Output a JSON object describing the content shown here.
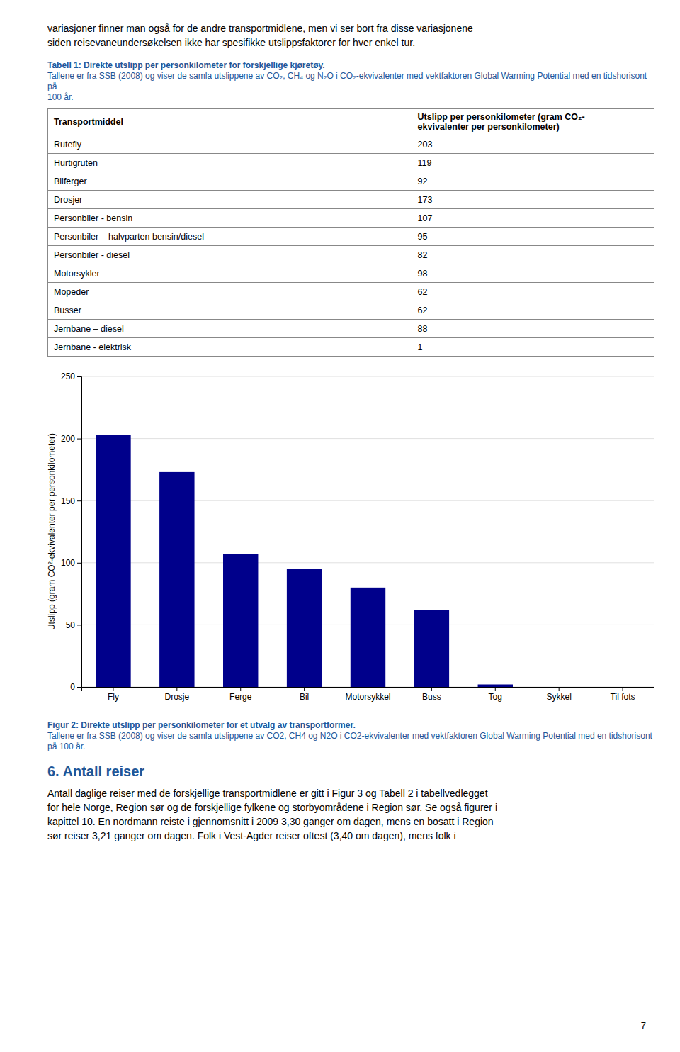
{
  "document": {
    "intro": [
      "variasjoner finner man også for de andre transportmidlene, men vi ser bort fra disse variasjonene",
      "siden reisevaneundersøkelsen ikke har spesifikke utslippsfaktorer for hver enkel tur."
    ],
    "table_caption_title": "Tabell 1: Direkte utslipp per personkilometer for forskjellige kjøretøy.",
    "table_caption_body": [
      "Tallene er fra SSB (2008) og viser de samla utslippene av CO₂, CH₄ og N₂O i CO₂-ekvivalenter med vektfaktoren Global Warming Potential med en tidshorisont på",
      "100 år."
    ],
    "table": {
      "columns": [
        "Transportmiddel",
        "Utslipp per personkilometer (gram CO₂-\nekvivalenter per personkilometer)"
      ],
      "rows": [
        [
          "Rutefly",
          "203"
        ],
        [
          "Hurtigruten",
          "119"
        ],
        [
          "Bilferger",
          "92"
        ],
        [
          "Drosjer",
          "173"
        ],
        [
          "Personbiler - bensin",
          "107"
        ],
        [
          "Personbiler – halvparten bensin/diesel",
          "95"
        ],
        [
          "Personbiler - diesel",
          "82"
        ],
        [
          "Motorsykler",
          "98"
        ],
        [
          "Mopeder",
          "62"
        ],
        [
          "Busser",
          "62"
        ],
        [
          "Jernbane – diesel",
          "88"
        ],
        [
          "Jernbane - elektrisk",
          "1"
        ]
      ]
    },
    "figure_caption_title": "Figur 2: Direkte utslipp per personkilometer for et utvalg av transportformer.",
    "figure_caption_body": "Tallene er fra SSB (2008) og viser de samla utslippene av CO2, CH4 og N2O i CO2-ekvivalenter med vektfaktoren Global Warming Potential med en tidshorisont på 100 år.",
    "section_heading": "6.  Antall reiser",
    "section_body": [
      "Antall daglige reiser med de forskjellige transportmidlene er gitt i Figur 3 og Tabell 2 i tabellvedlegget",
      "for hele Norge, Region sør og de forskjellige fylkene og storbyområdene i Region sør. Se også figurer i",
      "kapittel 10. En nordmann reiste i gjennomsnitt i 2009 3,30 ganger om dagen, mens en bosatt i Region",
      "sør reiser 3,21 ganger om dagen. Folk i Vest-Agder reiser oftest (3,40 om dagen), mens folk i"
    ],
    "page_number": "7"
  },
  "chart_data": {
    "type": "bar",
    "categories": [
      "Fly",
      "Drosje",
      "Ferge",
      "Bil",
      "Motorsykkel",
      "Buss",
      "Tog",
      "Sykkel",
      "Til fots"
    ],
    "values": [
      203,
      173,
      107,
      95,
      80,
      62,
      2,
      0,
      0
    ],
    "color": "#00008B",
    "ylabel": "Utslipp (gram CO²-ekvivalenter per personkilometer)",
    "ylim": [
      0,
      250
    ],
    "yticks": [
      0,
      50,
      100,
      150,
      200,
      250
    ],
    "grid": true
  }
}
